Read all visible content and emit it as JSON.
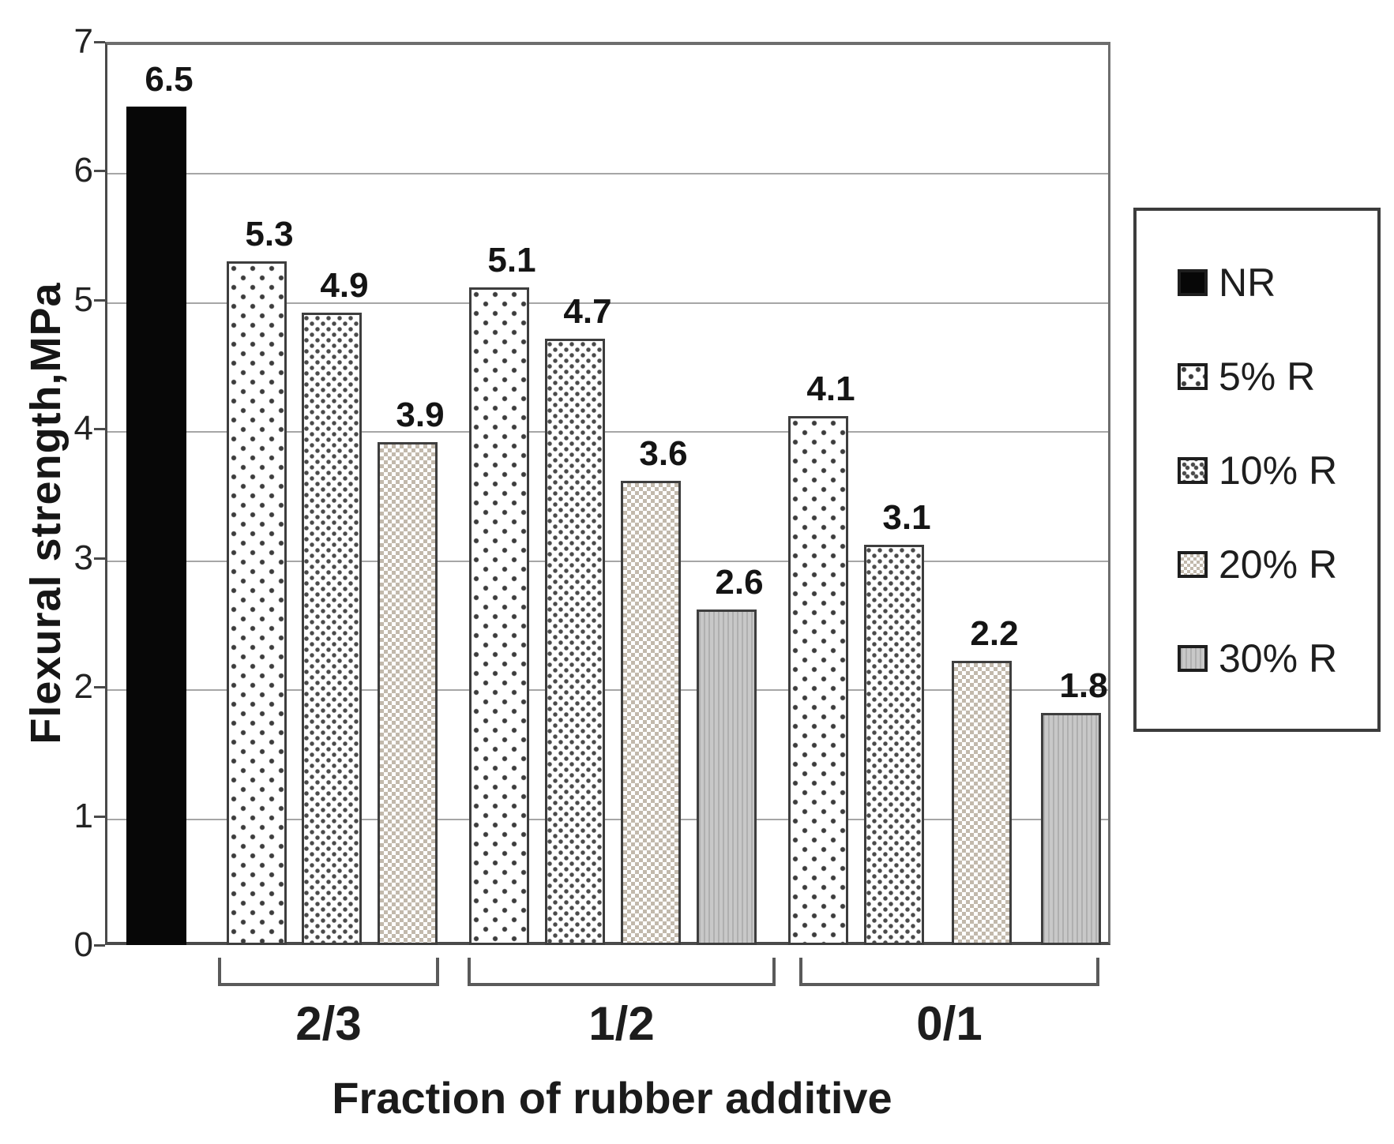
{
  "chart_data": {
    "type": "bar",
    "title": "",
    "xlabel": "Fraction of rubber additive",
    "ylabel": "Flexural strength,MPa",
    "ylim": [
      0,
      7
    ],
    "y_ticks": [
      0,
      1,
      2,
      3,
      4,
      5,
      6,
      7
    ],
    "grid": true,
    "legend_position": "right",
    "legend": [
      {
        "label": "NR",
        "pattern": "nr"
      },
      {
        "label": "5% R",
        "pattern": "5"
      },
      {
        "label": "10% R",
        "pattern": "10"
      },
      {
        "label": "20% R",
        "pattern": "20"
      },
      {
        "label": "30% R",
        "pattern": "30"
      }
    ],
    "groups": [
      {
        "label": "",
        "bracket": false,
        "bars": [
          {
            "series": "NR",
            "value": 6.5
          }
        ]
      },
      {
        "label": "2/3",
        "bracket": true,
        "bars": [
          {
            "series": "5% R",
            "value": 5.3
          },
          {
            "series": "10% R",
            "value": 4.9
          },
          {
            "series": "20% R",
            "value": 3.9
          }
        ]
      },
      {
        "label": "1/2",
        "bracket": true,
        "bars": [
          {
            "series": "5% R",
            "value": 5.1
          },
          {
            "series": "10% R",
            "value": 4.7
          },
          {
            "series": "20% R",
            "value": 3.6
          },
          {
            "series": "30% R",
            "value": 2.6
          }
        ]
      },
      {
        "label": "0/1",
        "bracket": true,
        "bars": [
          {
            "series": "5% R",
            "value": 4.1
          },
          {
            "series": "10% R",
            "value": 3.1
          },
          {
            "series": "20% R",
            "value": 2.2
          },
          {
            "series": "30% R",
            "value": 1.8
          }
        ]
      }
    ]
  },
  "colors": {
    "bar_black": "#070707",
    "bar_gray": "#c8c8c8",
    "checker": "#c2b9ac",
    "gridline": "#a6a6a6",
    "outline": "#3e3e3e"
  }
}
